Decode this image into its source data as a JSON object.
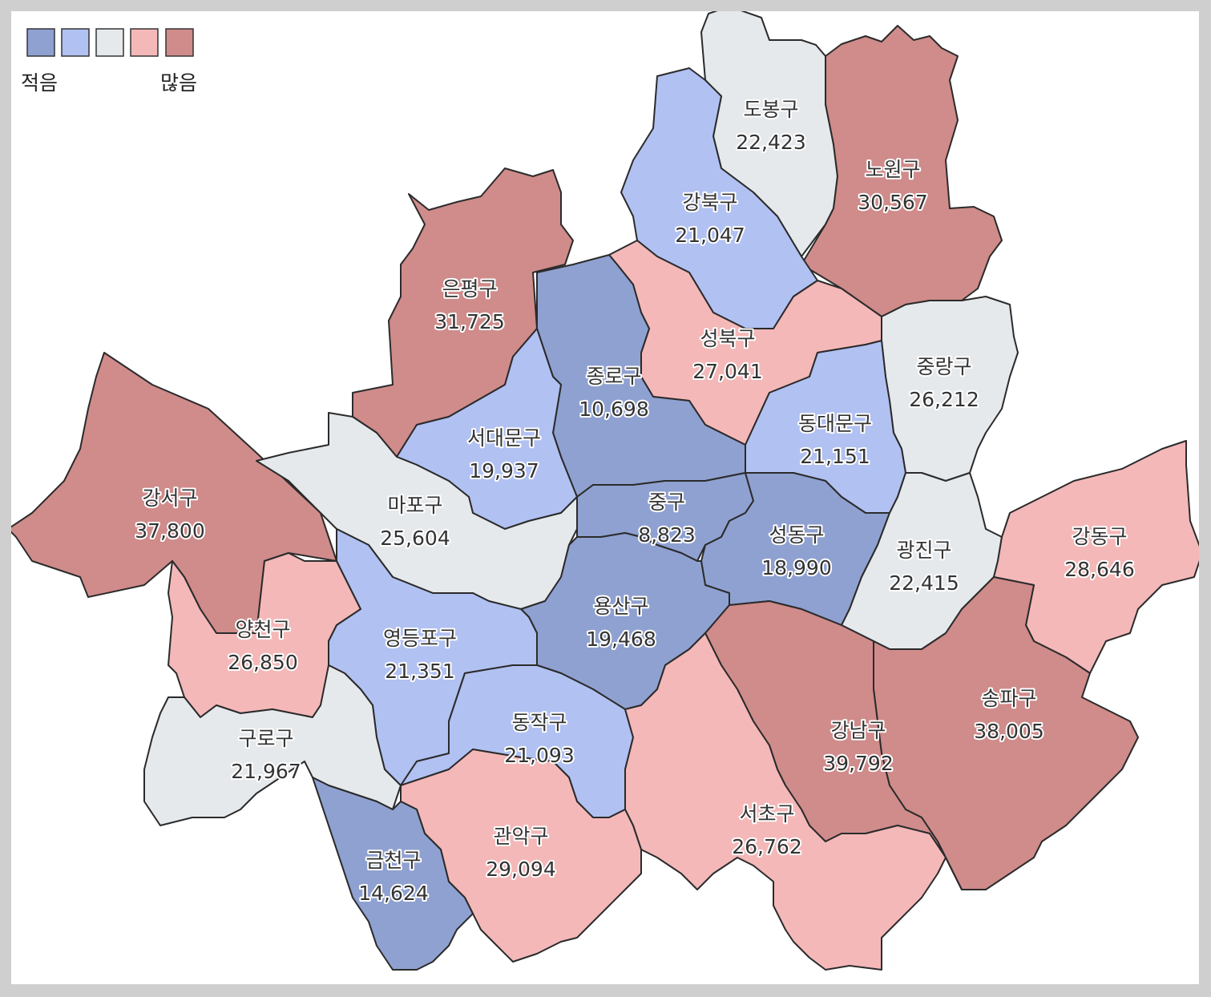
{
  "legend": {
    "low_label": "적음",
    "high_label": "많음",
    "colors": [
      "#8fa1d1",
      "#b1c1f2",
      "#e6e9ec",
      "#f4b8b8",
      "#d08b8b"
    ]
  },
  "districts": [
    {
      "name": "도봉구",
      "value": "22,423",
      "color": "#e6e9ec"
    },
    {
      "name": "노원구",
      "value": "30,567",
      "color": "#d08b8b"
    },
    {
      "name": "강북구",
      "value": "21,047",
      "color": "#b1c1f2"
    },
    {
      "name": "은평구",
      "value": "31,725",
      "color": "#d08b8b"
    },
    {
      "name": "성북구",
      "value": "27,041",
      "color": "#f4b8b8"
    },
    {
      "name": "종로구",
      "value": "10,698",
      "color": "#8fa1d1"
    },
    {
      "name": "중랑구",
      "value": "26,212",
      "color": "#e6e9ec"
    },
    {
      "name": "동대문구",
      "value": "21,151",
      "color": "#b1c1f2"
    },
    {
      "name": "서대문구",
      "value": "19,937",
      "color": "#b1c1f2"
    },
    {
      "name": "강서구",
      "value": "37,800",
      "color": "#d08b8b"
    },
    {
      "name": "마포구",
      "value": "25,604",
      "color": "#e6e9ec"
    },
    {
      "name": "중구",
      "value": "8,823",
      "color": "#8fa1d1"
    },
    {
      "name": "성동구",
      "value": "18,990",
      "color": "#8fa1d1"
    },
    {
      "name": "광진구",
      "value": "22,415",
      "color": "#e6e9ec"
    },
    {
      "name": "강동구",
      "value": "28,646",
      "color": "#f4b8b8"
    },
    {
      "name": "용산구",
      "value": "19,468",
      "color": "#8fa1d1"
    },
    {
      "name": "양천구",
      "value": "26,850",
      "color": "#f4b8b8"
    },
    {
      "name": "영등포구",
      "value": "21,351",
      "color": "#b1c1f2"
    },
    {
      "name": "구로구",
      "value": "21,967",
      "color": "#e6e9ec"
    },
    {
      "name": "동작구",
      "value": "21,093",
      "color": "#b1c1f2"
    },
    {
      "name": "송파구",
      "value": "38,005",
      "color": "#d08b8b"
    },
    {
      "name": "강남구",
      "value": "39,792",
      "color": "#d08b8b"
    },
    {
      "name": "서초구",
      "value": "26,762",
      "color": "#f4b8b8"
    },
    {
      "name": "관악구",
      "value": "29,094",
      "color": "#f4b8b8"
    },
    {
      "name": "금천구",
      "value": "14,624",
      "color": "#8fa1d1"
    }
  ]
}
